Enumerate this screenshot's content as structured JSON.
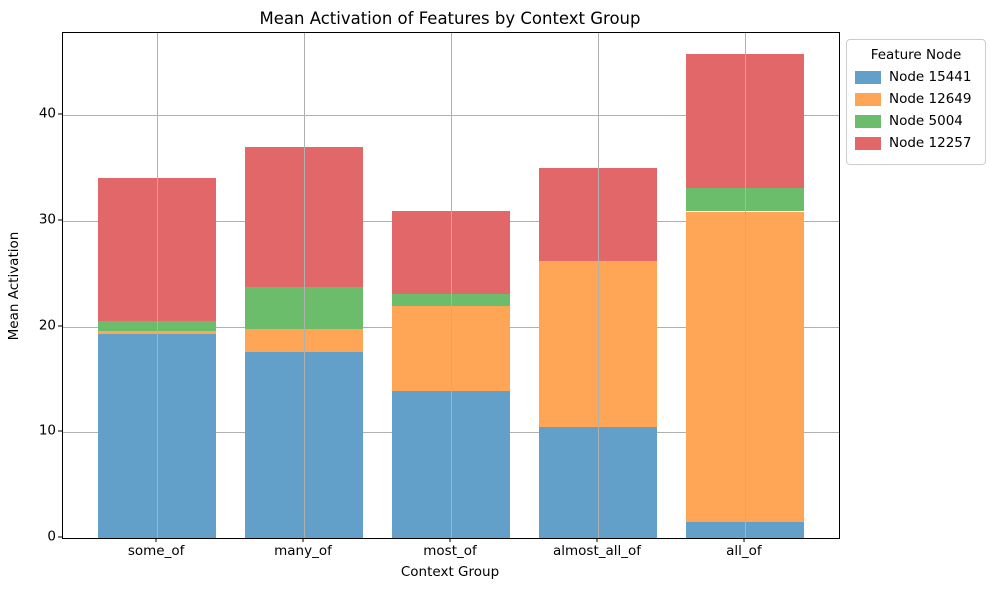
{
  "figure": {
    "title": "Mean Activation of Features by Context Group",
    "xlabel": "Context Group",
    "ylabel": "Mean Activation"
  },
  "legend": {
    "title": "Feature Node"
  },
  "chart_data": {
    "type": "bar",
    "stacked": true,
    "title": "Mean Activation of Features by Context Group",
    "xlabel": "Context Group",
    "ylabel": "Mean Activation",
    "categories": [
      "some_of",
      "many_of",
      "most_of",
      "almost_all_of",
      "all_of"
    ],
    "series": [
      {
        "name": "Node 15441",
        "color": "#62a0ca",
        "values": [
          19.3,
          17.6,
          13.9,
          10.5,
          1.5
        ]
      },
      {
        "name": "Node 12649",
        "color": "#ffa556",
        "values": [
          0.3,
          2.2,
          8.1,
          15.7,
          29.4
        ]
      },
      {
        "name": "Node 5004",
        "color": "#6bbc6b",
        "values": [
          0.9,
          4.0,
          1.1,
          0.0,
          2.2
        ]
      },
      {
        "name": "Node 12257",
        "color": "#e26768",
        "values": [
          13.6,
          13.2,
          7.9,
          8.8,
          12.7
        ]
      }
    ],
    "stack_totals": [
      34.1,
      37.0,
      31.0,
      35.0,
      45.8
    ],
    "ylim": [
      0,
      47.8
    ],
    "yticks": [
      0,
      10,
      20,
      30,
      40
    ],
    "grid": true,
    "bar_width_fraction": 0.8,
    "legend_title": "Feature Node",
    "legend_position": "upper right, outside plot area"
  }
}
